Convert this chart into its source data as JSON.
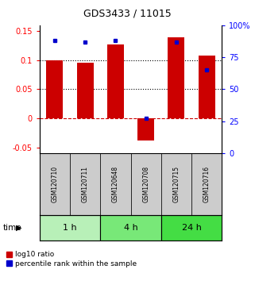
{
  "title": "GDS3433 / 11015",
  "samples": [
    "GSM120710",
    "GSM120711",
    "GSM120648",
    "GSM120708",
    "GSM120715",
    "GSM120716"
  ],
  "log10_ratio": [
    0.1,
    0.095,
    0.127,
    -0.038,
    0.14,
    0.108
  ],
  "percentile_rank": [
    88,
    87,
    88,
    27,
    87,
    65
  ],
  "groups": [
    {
      "label": "1 h",
      "indices": [
        0,
        1
      ],
      "color": "#b8f0b8"
    },
    {
      "label": "4 h",
      "indices": [
        2,
        3
      ],
      "color": "#78e878"
    },
    {
      "label": "24 h",
      "indices": [
        4,
        5
      ],
      "color": "#44dd44"
    }
  ],
  "bar_color": "#cc0000",
  "dot_color": "#0000cc",
  "ylim_left": [
    -0.06,
    0.16
  ],
  "ylim_right": [
    0,
    100
  ],
  "yticks_left": [
    -0.05,
    0.0,
    0.05,
    0.1,
    0.15
  ],
  "ytick_labels_left": [
    "-0.05",
    "0",
    "0.05",
    "0.1",
    "0.15"
  ],
  "yticks_right": [
    0,
    25,
    50,
    75,
    100
  ],
  "ytick_labels_right": [
    "0",
    "25",
    "50",
    "75",
    "100%"
  ],
  "hline_dashed_red": 0.0,
  "hlines_dotted": [
    0.05,
    0.1
  ],
  "bar_width": 0.55,
  "background_color": "#ffffff",
  "label_area_color": "#cccccc"
}
